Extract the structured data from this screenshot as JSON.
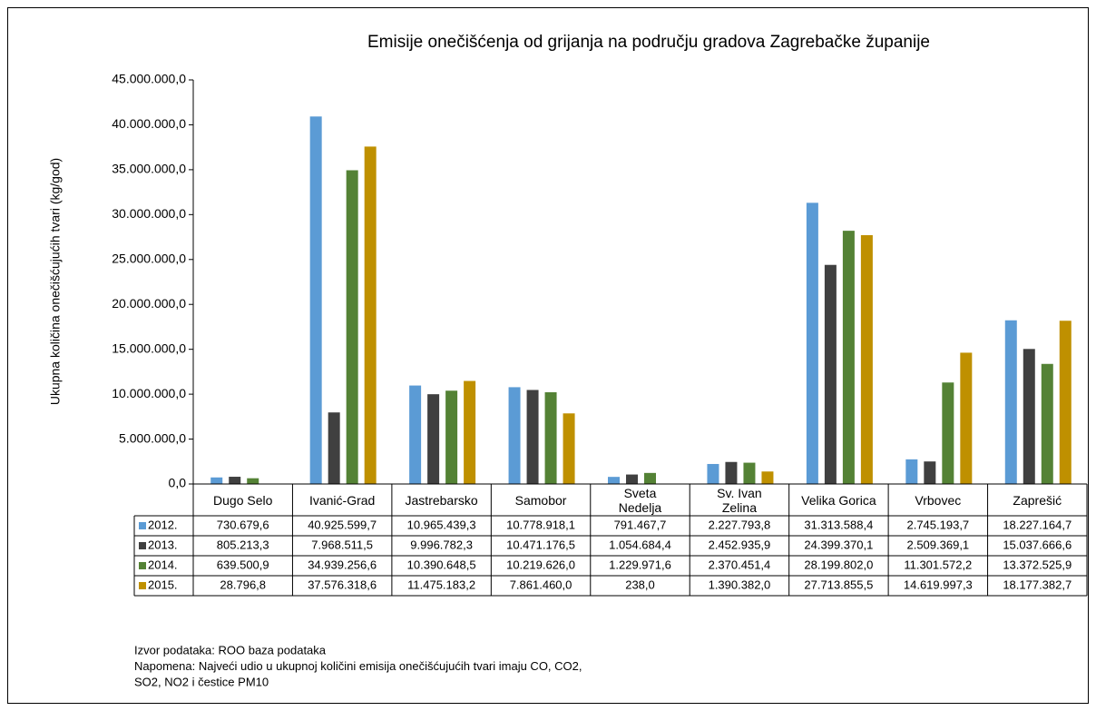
{
  "chart_data": {
    "type": "bar",
    "title": "Emisije onečišćenja od grijanja na području gradova Zagrebačke županije",
    "y_label": "Ukupna količina onečišćujućih tvari (kg/god)",
    "categories": [
      "Dugo Selo",
      "Ivanić-Grad",
      "Jastrebarsko",
      "Samobor",
      "Sveta\nNedelja",
      "Sv. Ivan\nZelina",
      "Velika Gorica",
      "Vrbovec",
      "Zaprešić"
    ],
    "series": [
      {
        "name": "2012.",
        "color": "#5b9bd5",
        "values": [
          730679.6,
          40925599.7,
          10965439.3,
          10778918.1,
          791467.7,
          2227793.8,
          31313588.4,
          2745193.7,
          18227164.7
        ],
        "value_labels": [
          "730.679,6",
          "40.925.599,7",
          "10.965.439,3",
          "10.778.918,1",
          "791.467,7",
          "2.227.793,8",
          "31.313.588,4",
          "2.745.193,7",
          "18.227.164,7"
        ]
      },
      {
        "name": "2013.",
        "color": "#404040",
        "values": [
          805213.3,
          7968511.5,
          9996782.3,
          10471176.5,
          1054684.4,
          2452935.9,
          24399370.1,
          2509369.1,
          15037666.6
        ],
        "value_labels": [
          "805.213,3",
          "7.968.511,5",
          "9.996.782,3",
          "10.471.176,5",
          "1.054.684,4",
          "2.452.935,9",
          "24.399.370,1",
          "2.509.369,1",
          "15.037.666,6"
        ]
      },
      {
        "name": "2014.",
        "color": "#548235",
        "values": [
          639500.9,
          34939256.6,
          10390648.5,
          10219626.0,
          1229971.6,
          2370451.4,
          28199802.0,
          11301572.2,
          13372525.9
        ],
        "value_labels": [
          "639.500,9",
          "34.939.256,6",
          "10.390.648,5",
          "10.219.626,0",
          "1.229.971,6",
          "2.370.451,4",
          "28.199.802,0",
          "11.301.572,2",
          "13.372.525,9"
        ]
      },
      {
        "name": "2015.",
        "color": "#bf9000",
        "values": [
          28796.8,
          37576318.6,
          11475183.2,
          7861460.0,
          238.0,
          1390382.0,
          27713855.5,
          14619997.3,
          18177382.7
        ],
        "value_labels": [
          "28.796,8",
          "37.576.318,6",
          "11.475.183,2",
          "7.861.460,0",
          "238,0",
          "1.390.382,0",
          "27.713.855,5",
          "14.619.997,3",
          "18.177.382,7"
        ]
      }
    ],
    "ylim": [
      0,
      45000000
    ],
    "yticks": [
      {
        "value": 0,
        "label": "0,0"
      },
      {
        "value": 5000000,
        "label": "5.000.000,0"
      },
      {
        "value": 10000000,
        "label": "10.000.000,0"
      },
      {
        "value": 15000000,
        "label": "15.000.000,0"
      },
      {
        "value": 20000000,
        "label": "20.000.000,0"
      },
      {
        "value": 25000000,
        "label": "25.000.000,0"
      },
      {
        "value": 30000000,
        "label": "30.000.000,0"
      },
      {
        "value": 35000000,
        "label": "35.000.000,0"
      },
      {
        "value": 40000000,
        "label": "40.000.000,0"
      },
      {
        "value": 45000000,
        "label": "45.000.000,0"
      }
    ],
    "grid": false,
    "notes": [
      "Izvor podataka: ROO baza podataka",
      "Napomena: Najveći udio u ukupnoj količini emisija onečišćujućih tvari imaju CO, CO2,",
      "SO2, NO2 i čestice PM10"
    ]
  }
}
